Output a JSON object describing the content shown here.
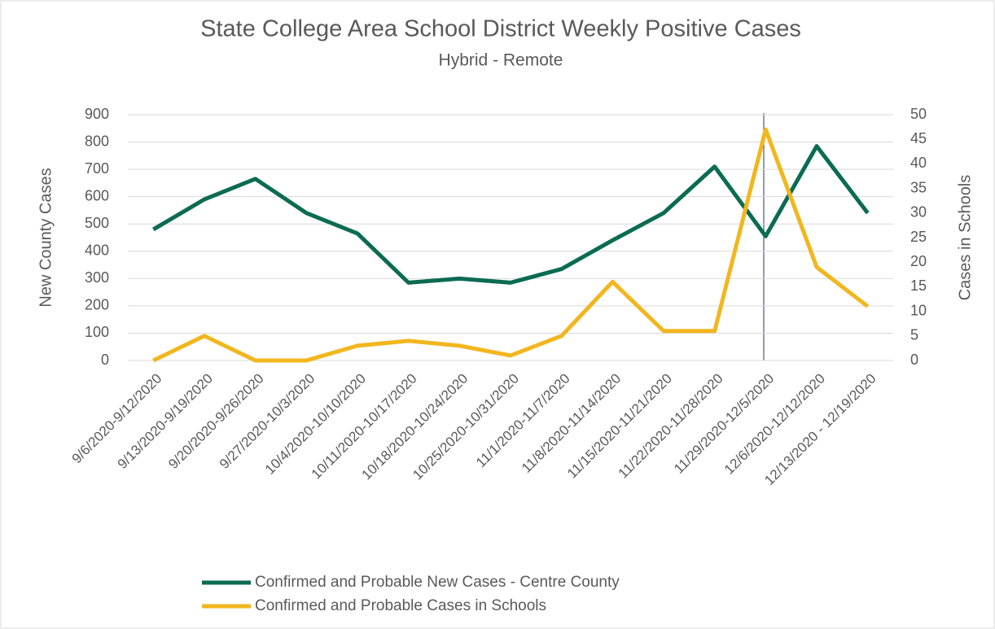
{
  "chart_data": {
    "type": "line",
    "title": "State College Area School District Weekly Positive Cases",
    "subtitle": "Hybrid - Remote",
    "y_label": "New County Cases",
    "y2_label": "Cases in Schools",
    "categories": [
      "9/6/2020-9/12/2020",
      "9/13/2020-9/19/2020",
      "9/20/2020-9/26/2020",
      "9/27/2020-10/3/2020",
      "10/4/2020-10/10/2020",
      "10/11/2020-10/17/2020",
      "10/18/2020-10/24/2020",
      "10/25/2020-10/31/2020",
      "11/1/2020-11/7/2020",
      "11/8/2020-11/14/2020",
      "11/15/2020-11/21/2020",
      "11/22/2020-11/28/2020",
      "11/29/2020-12/5/2020",
      "12/6/2020-12/12/2020",
      "12/13/2020 - 12/19/2020"
    ],
    "series": [
      {
        "name": "Confirmed and Probable New Cases - Centre County",
        "color": "#0b6b53",
        "values": [
          480,
          590,
          665,
          540,
          465,
          285,
          300,
          285,
          335,
          440,
          540,
          710,
          455,
          785,
          540
        ]
      },
      {
        "name": "Confirmed and Probable Cases in Schools",
        "color": "#f2b61e",
        "axis": "y2",
        "values": [
          0,
          5,
          0,
          0,
          3,
          4,
          3,
          1,
          5,
          16,
          6,
          6,
          47,
          19,
          11
        ]
      }
    ],
    "ylim": [
      0,
      900
    ],
    "yticks": [
      0,
      100,
      200,
      300,
      400,
      500,
      600,
      700,
      800,
      900
    ],
    "y2lim": [
      0,
      50
    ],
    "y2ticks": [
      0,
      5,
      10,
      15,
      20,
      25,
      30,
      35,
      40,
      45,
      50
    ],
    "grid": true,
    "legend": "bottom"
  }
}
